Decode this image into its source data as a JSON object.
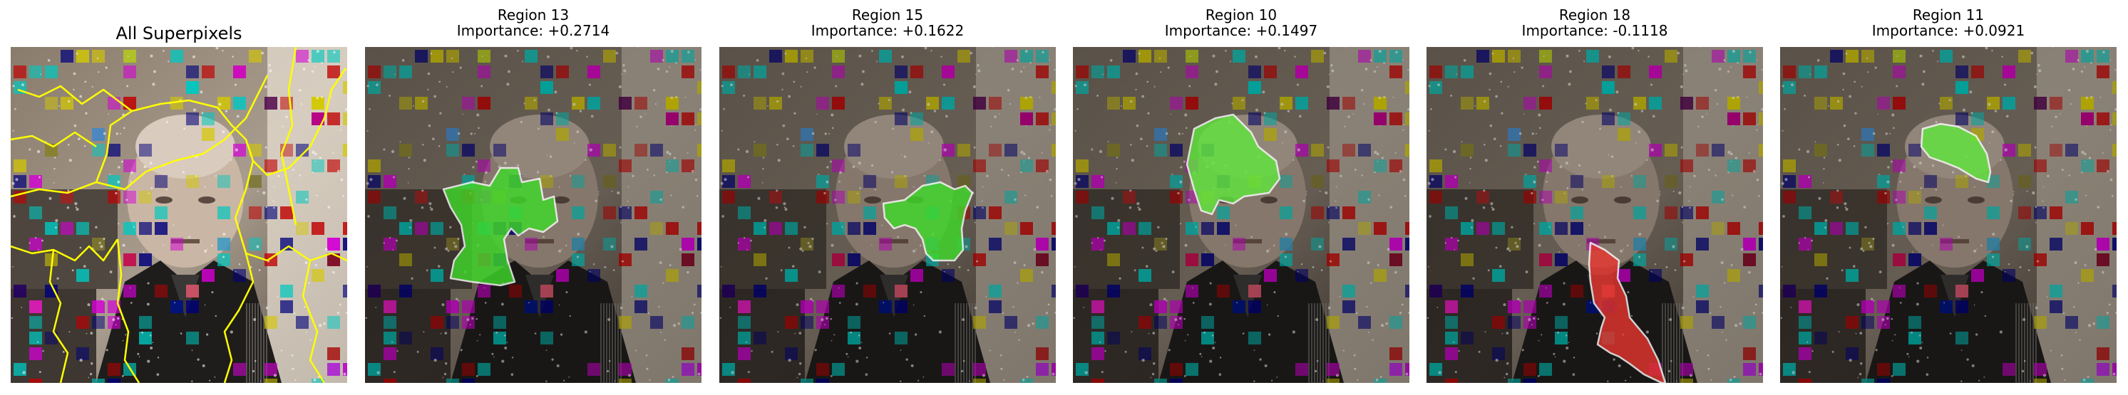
{
  "figure": {
    "panels": [
      {
        "title": "All Superpixels",
        "subtitle": "",
        "region_color": "",
        "kind": "all"
      },
      {
        "title": "Region 13",
        "subtitle": "Importance: +0.2714",
        "region_color": "#3fdc2a",
        "kind": "region"
      },
      {
        "title": "Region 15",
        "subtitle": "Importance: +0.1622",
        "region_color": "#3fdc2a",
        "kind": "region"
      },
      {
        "title": "Region 10",
        "subtitle": "Importance: +0.1497",
        "region_color": "#5fe83c",
        "kind": "region"
      },
      {
        "title": "Region 18",
        "subtitle": "Importance: -0.1118",
        "region_color": "#e8352e",
        "kind": "region"
      },
      {
        "title": "Region 11",
        "subtitle": "Importance: +0.0921",
        "region_color": "#5fe83c",
        "kind": "region"
      }
    ],
    "boundary_color": "#ffff00",
    "positive_color": "#3fdc2a",
    "negative_color": "#e8352e"
  }
}
